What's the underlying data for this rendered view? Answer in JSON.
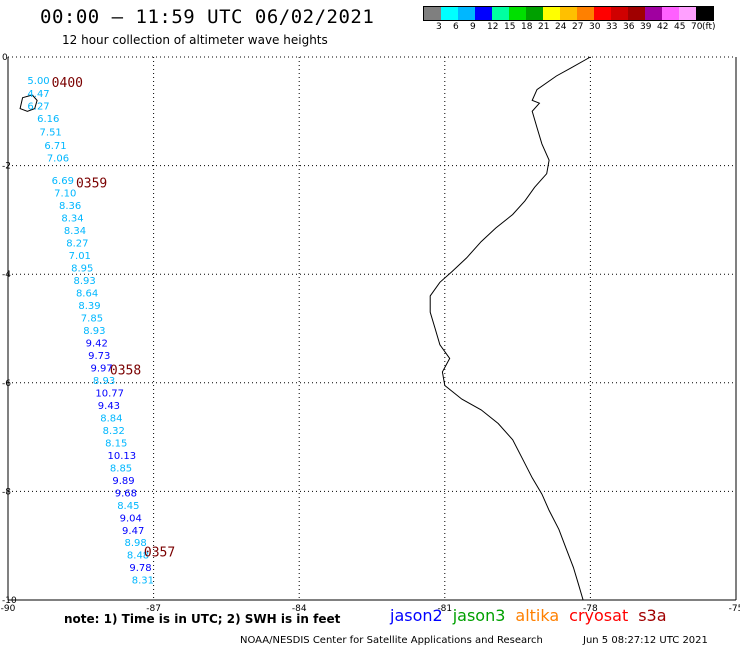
{
  "title": "00:00 – 11:59 UTC 06/02/2021",
  "subtitle": "12 hour collection of altimeter wave heights",
  "colorbar": {
    "colors": [
      "#7f7f7f",
      "#00ffff",
      "#00b7ff",
      "#0000ff",
      "#00ffa0",
      "#00e000",
      "#00a000",
      "#ffff00",
      "#ffc000",
      "#ff8000",
      "#ff0000",
      "#d00000",
      "#a00000",
      "#a000a0",
      "#ff60ff",
      "#ffa0ff",
      "#000000"
    ],
    "labels": [
      "3",
      "6",
      "9",
      "12",
      "15",
      "18",
      "21",
      "24",
      "27",
      "30",
      "33",
      "36",
      "39",
      "42",
      "45",
      "70",
      "(ft)"
    ]
  },
  "map": {
    "lon_ticks": [
      "-90",
      "-87",
      "-84",
      "-81",
      "-78",
      "-75"
    ],
    "lat_ticks": [
      "0",
      "-2",
      "-4",
      "-6",
      "-8",
      "-10"
    ],
    "extent": {
      "lon": [
        -90,
        -75
      ],
      "lat": [
        -10,
        0
      ]
    }
  },
  "times": [
    {
      "label": "0400",
      "lon": -89.1,
      "lat": -0.55
    },
    {
      "label": "0359",
      "lon": -88.6,
      "lat": -2.4
    },
    {
      "label": "0358",
      "lon": -87.9,
      "lat": -5.85
    },
    {
      "label": "0357",
      "lon": -87.2,
      "lat": -9.2
    }
  ],
  "wave_heights": [
    {
      "value": "5.00",
      "lon": -89.6,
      "lat": -0.5,
      "color": "#00b7ff"
    },
    {
      "value": "4.47",
      "lon": -89.6,
      "lat": -0.74,
      "color": "#00b7ff"
    },
    {
      "value": "6.27",
      "lon": -89.6,
      "lat": -0.97,
      "color": "#00b7ff"
    },
    {
      "value": "6.16",
      "lon": -89.4,
      "lat": -1.2,
      "color": "#00b7ff"
    },
    {
      "value": "7.51",
      "lon": -89.35,
      "lat": -1.45,
      "color": "#00b7ff"
    },
    {
      "value": "6.71",
      "lon": -89.25,
      "lat": -1.69,
      "color": "#00b7ff"
    },
    {
      "value": "7.06",
      "lon": -89.2,
      "lat": -1.92,
      "color": "#00b7ff"
    },
    {
      "value": "6.69",
      "lon": -89.1,
      "lat": -2.34,
      "color": "#00b7ff"
    },
    {
      "value": "7.10",
      "lon": -89.05,
      "lat": -2.57,
      "color": "#00b7ff"
    },
    {
      "value": "8.36",
      "lon": -88.95,
      "lat": -2.8,
      "color": "#00b7ff"
    },
    {
      "value": "8.34",
      "lon": -88.9,
      "lat": -3.03,
      "color": "#00b7ff"
    },
    {
      "value": "8.34",
      "lon": -88.85,
      "lat": -3.26,
      "color": "#00b7ff"
    },
    {
      "value": "8.27",
      "lon": -88.8,
      "lat": -3.49,
      "color": "#00b7ff"
    },
    {
      "value": "7.01",
      "lon": -88.75,
      "lat": -3.72,
      "color": "#00b7ff"
    },
    {
      "value": "8.95",
      "lon": -88.7,
      "lat": -3.95,
      "color": "#00b7ff"
    },
    {
      "value": "8.93",
      "lon": -88.65,
      "lat": -4.18,
      "color": "#00b7ff"
    },
    {
      "value": "8.64",
      "lon": -88.6,
      "lat": -4.41,
      "color": "#00b7ff"
    },
    {
      "value": "8.39",
      "lon": -88.55,
      "lat": -4.64,
      "color": "#00b7ff"
    },
    {
      "value": "7.85",
      "lon": -88.5,
      "lat": -4.87,
      "color": "#00b7ff"
    },
    {
      "value": "8.93",
      "lon": -88.45,
      "lat": -5.1,
      "color": "#00b7ff"
    },
    {
      "value": "9.42",
      "lon": -88.4,
      "lat": -5.33,
      "color": "#0000ff"
    },
    {
      "value": "9.73",
      "lon": -88.35,
      "lat": -5.56,
      "color": "#0000ff"
    },
    {
      "value": "9.97",
      "lon": -88.3,
      "lat": -5.79,
      "color": "#0000ff"
    },
    {
      "value": "8.93",
      "lon": -88.25,
      "lat": -6.02,
      "color": "#00b7ff"
    },
    {
      "value": "10.77",
      "lon": -88.2,
      "lat": -6.25,
      "color": "#0000ff"
    },
    {
      "value": "9.43",
      "lon": -88.15,
      "lat": -6.48,
      "color": "#0000ff"
    },
    {
      "value": "8.84",
      "lon": -88.1,
      "lat": -6.71,
      "color": "#00b7ff"
    },
    {
      "value": "8.32",
      "lon": -88.05,
      "lat": -6.94,
      "color": "#00b7ff"
    },
    {
      "value": "8.15",
      "lon": -88.0,
      "lat": -7.17,
      "color": "#00b7ff"
    },
    {
      "value": "10.13",
      "lon": -87.95,
      "lat": -7.4,
      "color": "#0000ff"
    },
    {
      "value": "8.85",
      "lon": -87.9,
      "lat": -7.63,
      "color": "#00b7ff"
    },
    {
      "value": "9.89",
      "lon": -87.85,
      "lat": -7.86,
      "color": "#0000ff"
    },
    {
      "value": "9.68",
      "lon": -87.8,
      "lat": -8.09,
      "color": "#0000ff"
    },
    {
      "value": "8.45",
      "lon": -87.75,
      "lat": -8.32,
      "color": "#00b7ff"
    },
    {
      "value": "9.04",
      "lon": -87.7,
      "lat": -8.55,
      "color": "#0000ff"
    },
    {
      "value": "9.47",
      "lon": -87.65,
      "lat": -8.78,
      "color": "#0000ff"
    },
    {
      "value": "8.98",
      "lon": -87.6,
      "lat": -9.01,
      "color": "#00b7ff"
    },
    {
      "value": "8.48",
      "lon": -87.55,
      "lat": -9.24,
      "color": "#00b7ff"
    },
    {
      "value": "9.78",
      "lon": -87.5,
      "lat": -9.47,
      "color": "#0000ff"
    },
    {
      "value": "8.31",
      "lon": -87.45,
      "lat": -9.7,
      "color": "#00b7ff"
    }
  ],
  "note": "note:  1) Time is in UTC;  2) SWH is in feet",
  "satellites": [
    {
      "name": "jason2",
      "color": "#0000ff"
    },
    {
      "name": "jason3",
      "color": "#00a000"
    },
    {
      "name": "altika",
      "color": "#ff8000"
    },
    {
      "name": "cryosat",
      "color": "#ff0000"
    },
    {
      "name": "s3a",
      "color": "#a00000"
    }
  ],
  "credit": "NOAA/NESDIS Center for Satellite Applications and Research",
  "credit_time": "Jun  5 08:27:12 UTC 2021"
}
